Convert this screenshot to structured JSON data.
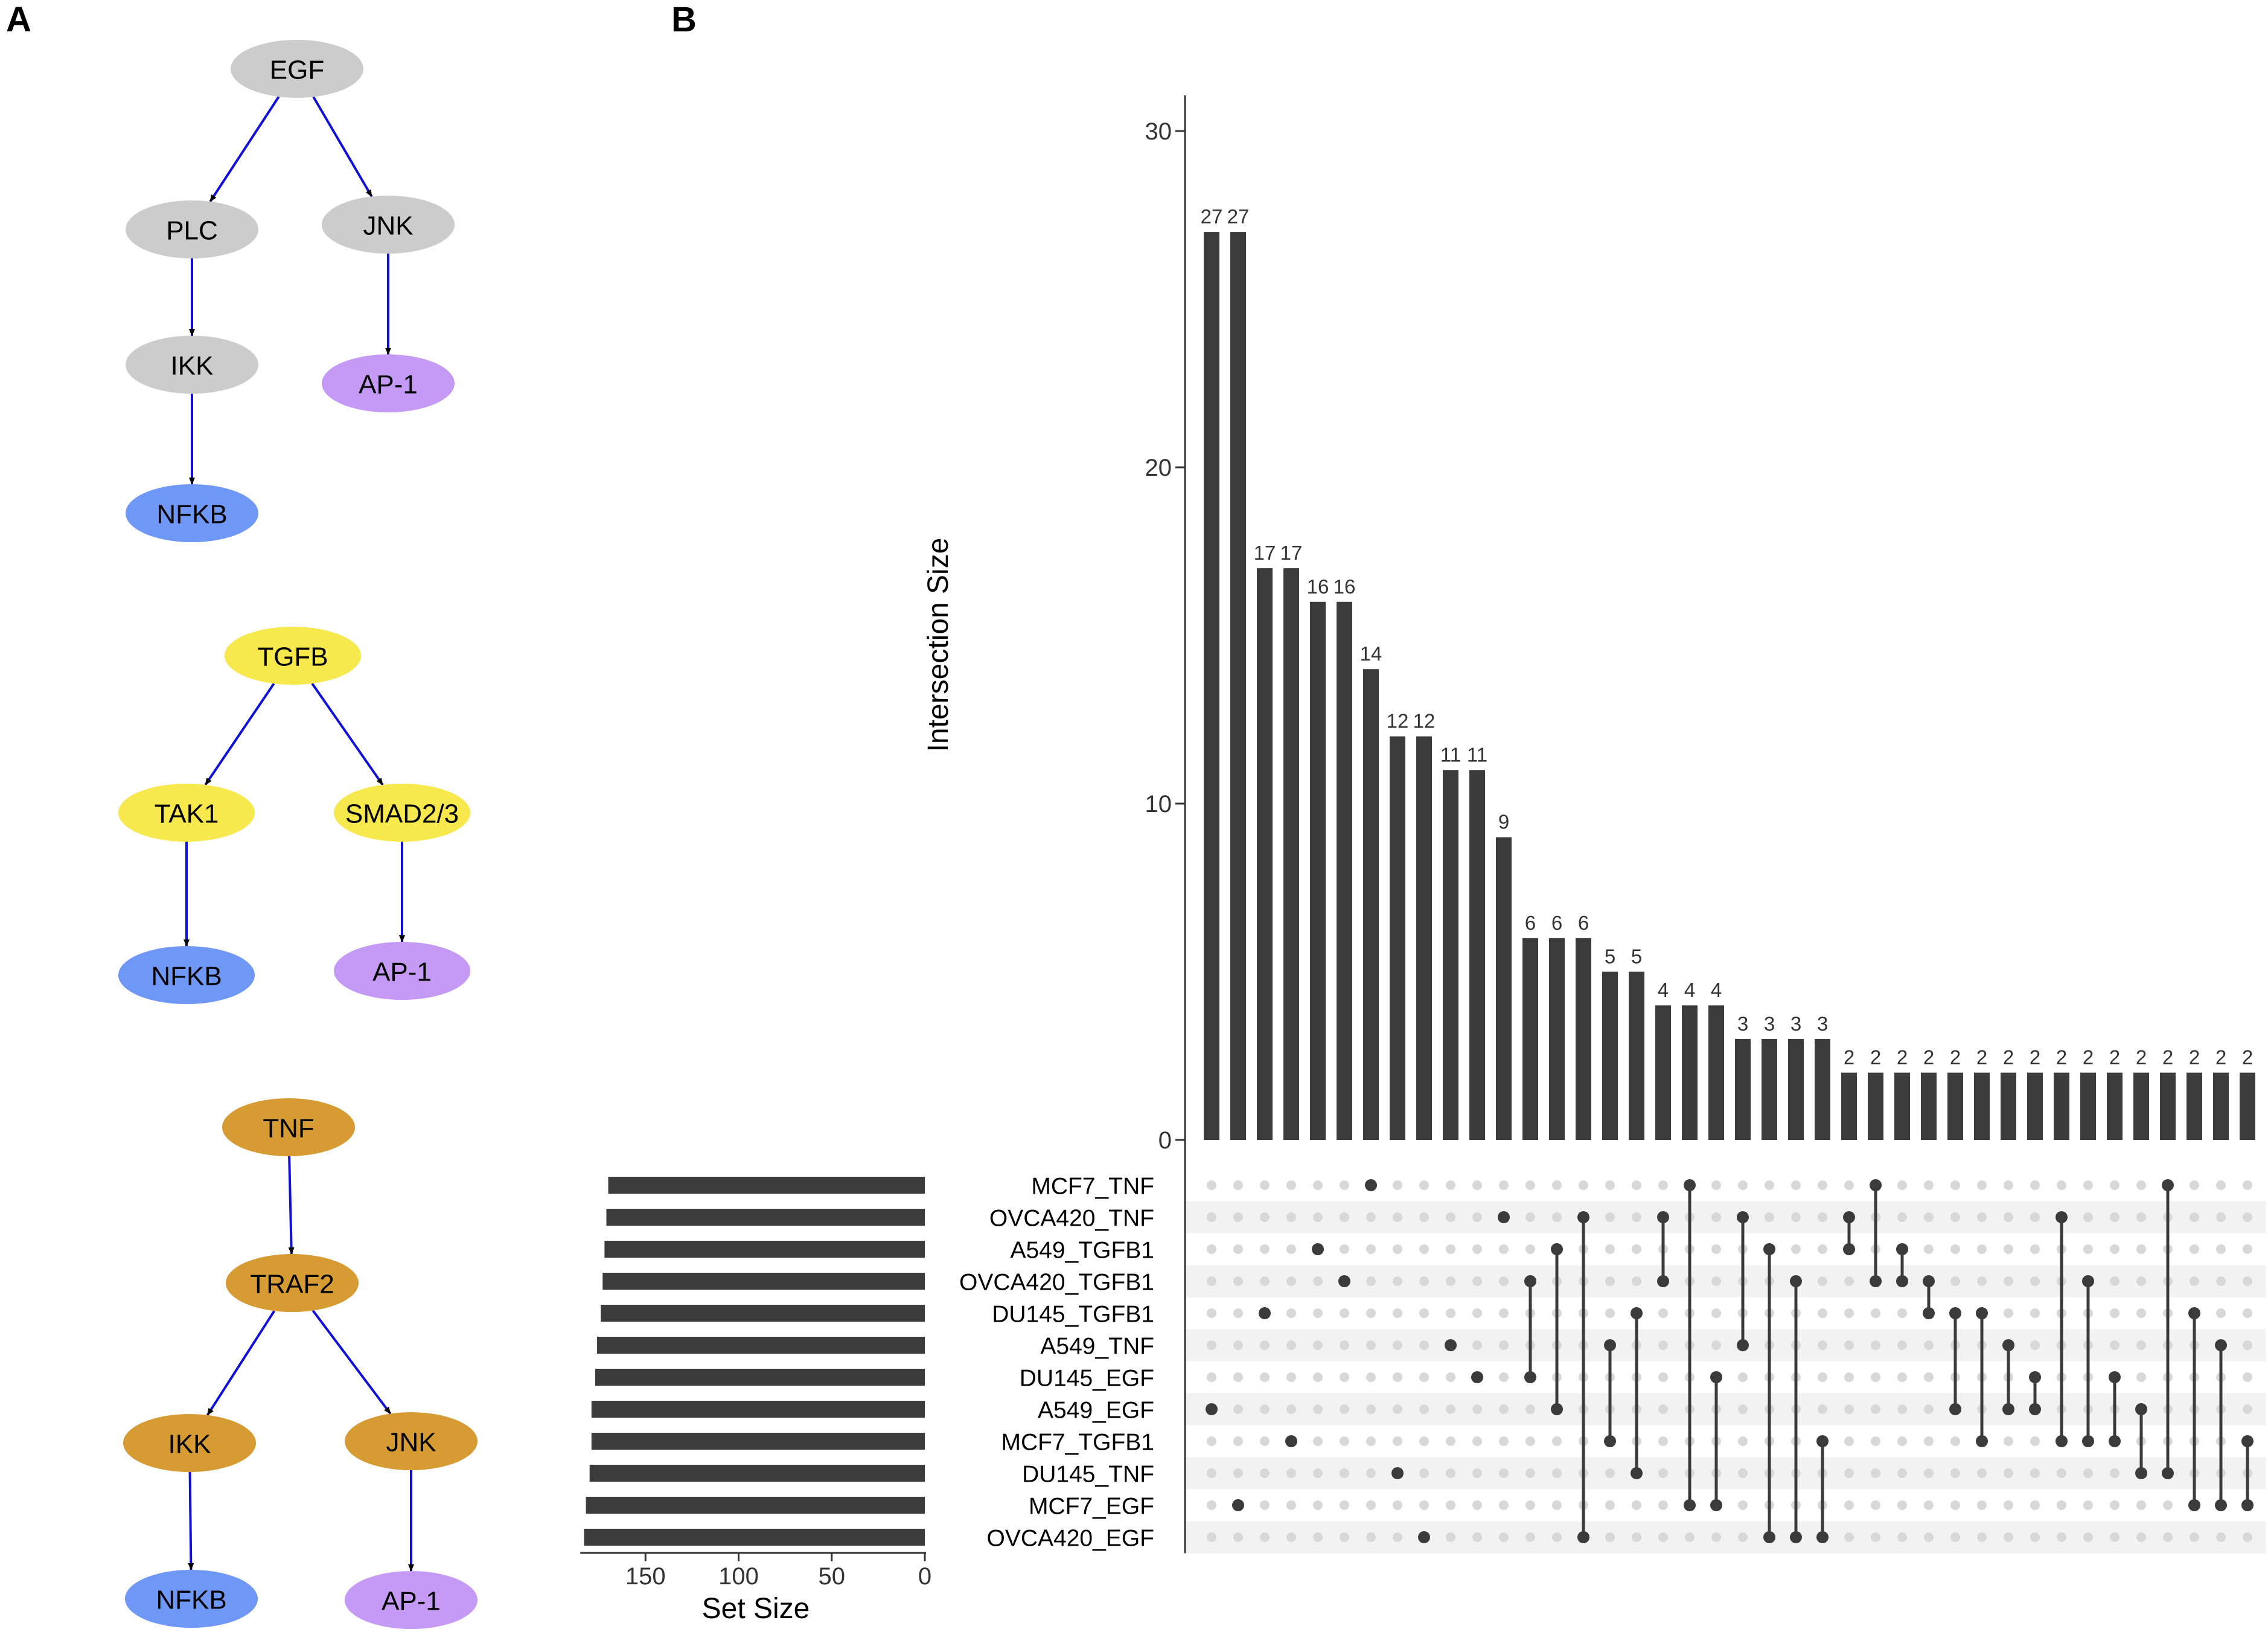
{
  "panels": {
    "a": "A",
    "b": "B"
  },
  "networks": [
    {
      "nodes": [
        {
          "id": "EGF",
          "label": "EGF",
          "color": "#cccccc"
        },
        {
          "id": "PLC",
          "label": "PLC",
          "color": "#cccccc"
        },
        {
          "id": "JNK",
          "label": "JNK",
          "color": "#cccccc"
        },
        {
          "id": "IKK",
          "label": "IKK",
          "color": "#cccccc"
        },
        {
          "id": "AP1",
          "label": "AP-1",
          "color": "#c49af5"
        },
        {
          "id": "NFKB",
          "label": "NFKB",
          "color": "#6f97f5"
        }
      ],
      "edges": [
        [
          "EGF",
          "PLC"
        ],
        [
          "EGF",
          "JNK"
        ],
        [
          "PLC",
          "IKK"
        ],
        [
          "JNK",
          "AP1"
        ],
        [
          "IKK",
          "NFKB"
        ]
      ]
    },
    {
      "nodes": [
        {
          "id": "TGFB",
          "label": "TGFB",
          "color": "#f7e84d"
        },
        {
          "id": "TAK1",
          "label": "TAK1",
          "color": "#f7e84d"
        },
        {
          "id": "SMAD",
          "label": "SMAD2/3",
          "color": "#f7e84d"
        },
        {
          "id": "NFKB",
          "label": "NFKB",
          "color": "#6f97f5"
        },
        {
          "id": "AP1",
          "label": "AP-1",
          "color": "#c49af5"
        }
      ],
      "edges": [
        [
          "TGFB",
          "TAK1"
        ],
        [
          "TGFB",
          "SMAD"
        ],
        [
          "TAK1",
          "NFKB"
        ],
        [
          "SMAD",
          "AP1"
        ]
      ]
    },
    {
      "nodes": [
        {
          "id": "TNF",
          "label": "TNF",
          "color": "#d79b33"
        },
        {
          "id": "TRAF2",
          "label": "TRAF2",
          "color": "#d79b33"
        },
        {
          "id": "IKK",
          "label": "IKK",
          "color": "#d79b33"
        },
        {
          "id": "JNK",
          "label": "JNK",
          "color": "#d79b33"
        },
        {
          "id": "NFKB",
          "label": "NFKB",
          "color": "#6f97f5"
        },
        {
          "id": "AP1",
          "label": "AP-1",
          "color": "#c49af5"
        }
      ],
      "edges": [
        [
          "TNF",
          "TRAF2"
        ],
        [
          "TRAF2",
          "IKK"
        ],
        [
          "TRAF2",
          "JNK"
        ],
        [
          "IKK",
          "NFKB"
        ],
        [
          "JNK",
          "AP1"
        ]
      ]
    }
  ],
  "colors": {
    "edge": "#1010d8",
    "bar": "#3b3b3b",
    "dot_off": "#d8d8d8",
    "stripe": "#f2f2f2"
  },
  "chart_data": {
    "type": "upset",
    "ylabel": "Intersection Size",
    "ylim": [
      0,
      31
    ],
    "yticks": [
      0,
      10,
      20,
      30
    ],
    "intersection_sizes": [
      27,
      27,
      17,
      17,
      16,
      16,
      14,
      12,
      12,
      11,
      11,
      9,
      6,
      6,
      6,
      5,
      5,
      4,
      4,
      4,
      3,
      3,
      3,
      3,
      2,
      2,
      2,
      2,
      2,
      2,
      2,
      2,
      2,
      2,
      2,
      2,
      2,
      2,
      2,
      2
    ],
    "sets": [
      "MCF7_TNF",
      "OVCA420_TNF",
      "A549_TGFB1",
      "OVCA420_TGFB1",
      "DU145_TGFB1",
      "A549_TNF",
      "DU145_EGF",
      "A549_EGF",
      "MCF7_TGFB1",
      "DU145_TNF",
      "MCF7_EGF",
      "OVCA420_EGF"
    ],
    "set_sizes": [
      170,
      171,
      172,
      173,
      174,
      176,
      177,
      179,
      179,
      180,
      182,
      183
    ],
    "set_size_xlabel": "Set Size",
    "set_size_ticks": [
      150,
      100,
      50,
      0
    ],
    "set_size_max": 185,
    "memberships": [
      [
        7
      ],
      [
        10
      ],
      [
        4
      ],
      [
        8
      ],
      [
        2
      ],
      [
        3
      ],
      [
        0
      ],
      [
        9
      ],
      [
        11
      ],
      [
        5
      ],
      [
        6
      ],
      [
        1
      ],
      [
        6,
        3
      ],
      [
        7,
        2
      ],
      [
        11,
        1
      ],
      [
        8,
        5
      ],
      [
        9,
        4
      ],
      [
        1,
        3
      ],
      [
        0,
        10
      ],
      [
        6,
        10
      ],
      [
        5,
        1
      ],
      [
        2,
        11
      ],
      [
        3,
        11
      ],
      [
        8,
        11
      ],
      [
        1,
        2
      ],
      [
        0,
        3
      ],
      [
        2,
        3
      ],
      [
        3,
        4
      ],
      [
        4,
        7
      ],
      [
        4,
        8
      ],
      [
        5,
        7
      ],
      [
        6,
        7
      ],
      [
        1,
        8
      ],
      [
        3,
        8
      ],
      [
        6,
        8
      ],
      [
        7,
        9
      ],
      [
        0,
        9
      ],
      [
        10,
        4
      ],
      [
        5,
        10
      ],
      [
        8,
        10
      ]
    ]
  }
}
